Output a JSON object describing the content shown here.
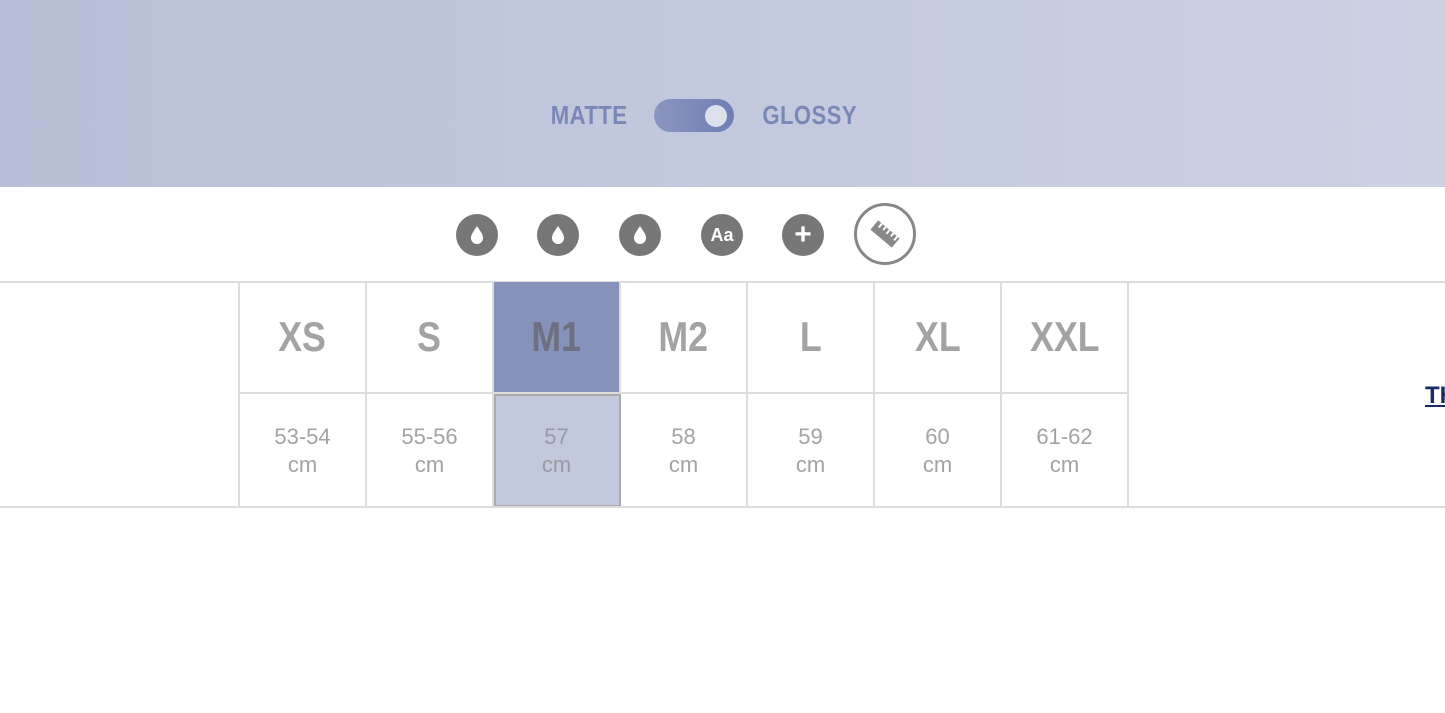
{
  "finish": {
    "left": "MATTE",
    "right": "GLOSSY",
    "state": "glossy"
  },
  "icons": [
    {
      "name": "drop-icon"
    },
    {
      "name": "drop-icon"
    },
    {
      "name": "drop-icon"
    },
    {
      "name": "text-icon",
      "label": "Aa"
    },
    {
      "name": "plus-icon"
    },
    {
      "name": "ruler-icon",
      "active": true
    }
  ],
  "sizes": [
    {
      "label": "XS",
      "measure": "53-54",
      "unit": "cm"
    },
    {
      "label": "S",
      "measure": "55-56",
      "unit": "cm"
    },
    {
      "label": "M1",
      "measure": "57",
      "unit": "cm",
      "selected": true
    },
    {
      "label": "M2",
      "measure": "58",
      "unit": "cm"
    },
    {
      "label": "L",
      "measure": "59",
      "unit": "cm"
    },
    {
      "label": "XL",
      "measure": "60",
      "unit": "cm"
    },
    {
      "label": "XXL",
      "measure": "61-62",
      "unit": "cm"
    }
  ],
  "link": "TH",
  "colors": {
    "accent": "#8592b9",
    "selected_light": "#c3c9dc",
    "text": "#a3a3a3",
    "link": "#1b2a6b"
  }
}
